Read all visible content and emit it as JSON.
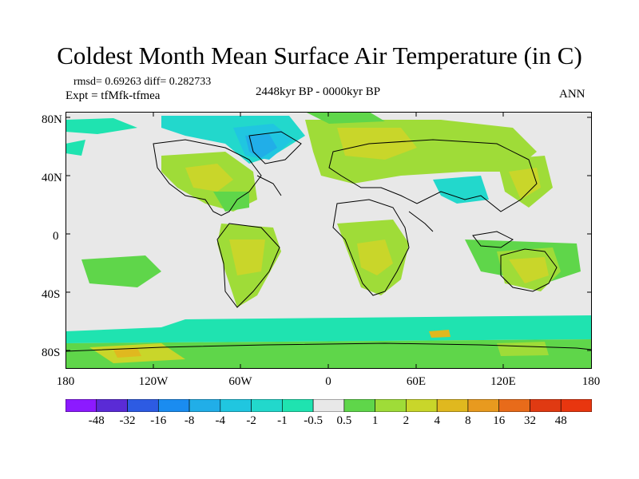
{
  "title": "Coldest Month Mean Surface Air Temperature (in C)",
  "stats": {
    "rmsd": "rmsd= 0.69263 diff= 0.282733",
    "expt": "Expt = tfMfk-tfmea"
  },
  "period": "2448kyr BP - 0000kyr BP",
  "season": "ANN",
  "map": {
    "lat_labels": [
      "80N",
      "40N",
      "0",
      "40S",
      "80S"
    ],
    "lon_labels": [
      "180",
      "120W",
      "60W",
      "0",
      "60E",
      "120E",
      "180"
    ],
    "background_color": "#e8e8e8",
    "coastline_color": "#000000"
  },
  "colorbar": {
    "labels": [
      "-48",
      "-32",
      "-16",
      "-8",
      "-4",
      "-2",
      "-1",
      "-0.5",
      "0.5",
      "1",
      "2",
      "4",
      "8",
      "16",
      "32",
      "48"
    ],
    "colors": [
      "#8c1aff",
      "#5a2bd6",
      "#2d5be3",
      "#1a8cf0",
      "#21aee8",
      "#20c6e0",
      "#22d8cc",
      "#1fe3b0",
      "#e8e8e8",
      "#5fd64a",
      "#9fdc38",
      "#c9d62a",
      "#e0b81f",
      "#e89a1f",
      "#e86b1a",
      "#e03a12",
      "#e8360f"
    ]
  }
}
